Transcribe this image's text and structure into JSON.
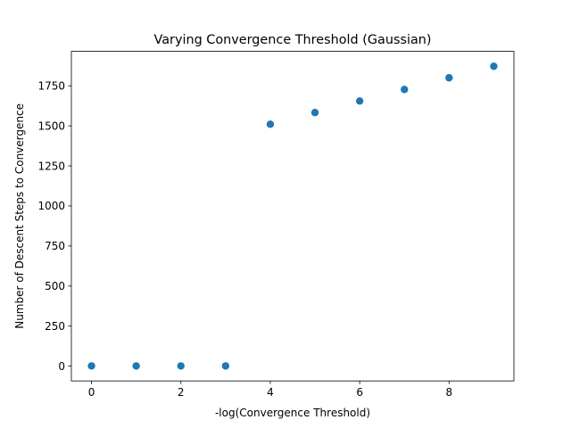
{
  "chart_data": {
    "type": "scatter",
    "title": "Varying Convergence Threshold (Gaussian)",
    "xlabel": "-log(Convergence Threshold)",
    "ylabel": "Number of Descent Steps to Convergence",
    "x": [
      0,
      1,
      2,
      3,
      4,
      5,
      6,
      7,
      8,
      9
    ],
    "y": [
      1,
      1,
      1,
      1,
      1510,
      1583,
      1655,
      1727,
      1800,
      1872
    ],
    "xlim": [
      -0.45,
      9.45
    ],
    "ylim": [
      -92.5,
      1965
    ],
    "xticks": [
      0,
      2,
      4,
      6,
      8
    ],
    "yticks": [
      0,
      250,
      500,
      750,
      1000,
      1250,
      1500,
      1750
    ],
    "xtick_labels": [
      "0",
      "2",
      "4",
      "6",
      "8"
    ],
    "ytick_labels": [
      "0",
      "250",
      "500",
      "750",
      "1000",
      "1250",
      "1500",
      "1750"
    ],
    "grid": false,
    "marker_color": "#1f77b4"
  }
}
